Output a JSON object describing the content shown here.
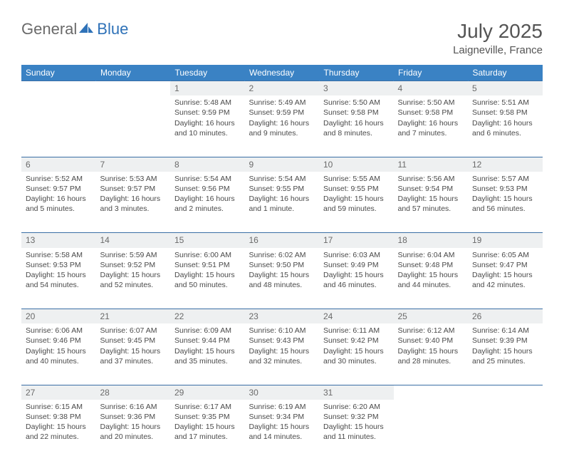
{
  "brand": {
    "part1": "General",
    "part2": "Blue"
  },
  "title": "July 2025",
  "location": "Laigneville, France",
  "colors": {
    "header_bg": "#3a82c4",
    "header_text": "#ffffff",
    "daynum_bg": "#eef0f1",
    "row_border": "#3a6ea5",
    "text": "#4a4a4a",
    "title_text": "#545454",
    "logo_gray": "#6a6a6a",
    "logo_blue": "#2f72b8",
    "page_bg": "#ffffff"
  },
  "dayHeaders": [
    "Sunday",
    "Monday",
    "Tuesday",
    "Wednesday",
    "Thursday",
    "Friday",
    "Saturday"
  ],
  "weeks": [
    [
      null,
      null,
      {
        "n": "1",
        "sr": "Sunrise: 5:48 AM",
        "ss": "Sunset: 9:59 PM",
        "dl": "Daylight: 16 hours and 10 minutes."
      },
      {
        "n": "2",
        "sr": "Sunrise: 5:49 AM",
        "ss": "Sunset: 9:59 PM",
        "dl": "Daylight: 16 hours and 9 minutes."
      },
      {
        "n": "3",
        "sr": "Sunrise: 5:50 AM",
        "ss": "Sunset: 9:58 PM",
        "dl": "Daylight: 16 hours and 8 minutes."
      },
      {
        "n": "4",
        "sr": "Sunrise: 5:50 AM",
        "ss": "Sunset: 9:58 PM",
        "dl": "Daylight: 16 hours and 7 minutes."
      },
      {
        "n": "5",
        "sr": "Sunrise: 5:51 AM",
        "ss": "Sunset: 9:58 PM",
        "dl": "Daylight: 16 hours and 6 minutes."
      }
    ],
    [
      {
        "n": "6",
        "sr": "Sunrise: 5:52 AM",
        "ss": "Sunset: 9:57 PM",
        "dl": "Daylight: 16 hours and 5 minutes."
      },
      {
        "n": "7",
        "sr": "Sunrise: 5:53 AM",
        "ss": "Sunset: 9:57 PM",
        "dl": "Daylight: 16 hours and 3 minutes."
      },
      {
        "n": "8",
        "sr": "Sunrise: 5:54 AM",
        "ss": "Sunset: 9:56 PM",
        "dl": "Daylight: 16 hours and 2 minutes."
      },
      {
        "n": "9",
        "sr": "Sunrise: 5:54 AM",
        "ss": "Sunset: 9:55 PM",
        "dl": "Daylight: 16 hours and 1 minute."
      },
      {
        "n": "10",
        "sr": "Sunrise: 5:55 AM",
        "ss": "Sunset: 9:55 PM",
        "dl": "Daylight: 15 hours and 59 minutes."
      },
      {
        "n": "11",
        "sr": "Sunrise: 5:56 AM",
        "ss": "Sunset: 9:54 PM",
        "dl": "Daylight: 15 hours and 57 minutes."
      },
      {
        "n": "12",
        "sr": "Sunrise: 5:57 AM",
        "ss": "Sunset: 9:53 PM",
        "dl": "Daylight: 15 hours and 56 minutes."
      }
    ],
    [
      {
        "n": "13",
        "sr": "Sunrise: 5:58 AM",
        "ss": "Sunset: 9:53 PM",
        "dl": "Daylight: 15 hours and 54 minutes."
      },
      {
        "n": "14",
        "sr": "Sunrise: 5:59 AM",
        "ss": "Sunset: 9:52 PM",
        "dl": "Daylight: 15 hours and 52 minutes."
      },
      {
        "n": "15",
        "sr": "Sunrise: 6:00 AM",
        "ss": "Sunset: 9:51 PM",
        "dl": "Daylight: 15 hours and 50 minutes."
      },
      {
        "n": "16",
        "sr": "Sunrise: 6:02 AM",
        "ss": "Sunset: 9:50 PM",
        "dl": "Daylight: 15 hours and 48 minutes."
      },
      {
        "n": "17",
        "sr": "Sunrise: 6:03 AM",
        "ss": "Sunset: 9:49 PM",
        "dl": "Daylight: 15 hours and 46 minutes."
      },
      {
        "n": "18",
        "sr": "Sunrise: 6:04 AM",
        "ss": "Sunset: 9:48 PM",
        "dl": "Daylight: 15 hours and 44 minutes."
      },
      {
        "n": "19",
        "sr": "Sunrise: 6:05 AM",
        "ss": "Sunset: 9:47 PM",
        "dl": "Daylight: 15 hours and 42 minutes."
      }
    ],
    [
      {
        "n": "20",
        "sr": "Sunrise: 6:06 AM",
        "ss": "Sunset: 9:46 PM",
        "dl": "Daylight: 15 hours and 40 minutes."
      },
      {
        "n": "21",
        "sr": "Sunrise: 6:07 AM",
        "ss": "Sunset: 9:45 PM",
        "dl": "Daylight: 15 hours and 37 minutes."
      },
      {
        "n": "22",
        "sr": "Sunrise: 6:09 AM",
        "ss": "Sunset: 9:44 PM",
        "dl": "Daylight: 15 hours and 35 minutes."
      },
      {
        "n": "23",
        "sr": "Sunrise: 6:10 AM",
        "ss": "Sunset: 9:43 PM",
        "dl": "Daylight: 15 hours and 32 minutes."
      },
      {
        "n": "24",
        "sr": "Sunrise: 6:11 AM",
        "ss": "Sunset: 9:42 PM",
        "dl": "Daylight: 15 hours and 30 minutes."
      },
      {
        "n": "25",
        "sr": "Sunrise: 6:12 AM",
        "ss": "Sunset: 9:40 PM",
        "dl": "Daylight: 15 hours and 28 minutes."
      },
      {
        "n": "26",
        "sr": "Sunrise: 6:14 AM",
        "ss": "Sunset: 9:39 PM",
        "dl": "Daylight: 15 hours and 25 minutes."
      }
    ],
    [
      {
        "n": "27",
        "sr": "Sunrise: 6:15 AM",
        "ss": "Sunset: 9:38 PM",
        "dl": "Daylight: 15 hours and 22 minutes."
      },
      {
        "n": "28",
        "sr": "Sunrise: 6:16 AM",
        "ss": "Sunset: 9:36 PM",
        "dl": "Daylight: 15 hours and 20 minutes."
      },
      {
        "n": "29",
        "sr": "Sunrise: 6:17 AM",
        "ss": "Sunset: 9:35 PM",
        "dl": "Daylight: 15 hours and 17 minutes."
      },
      {
        "n": "30",
        "sr": "Sunrise: 6:19 AM",
        "ss": "Sunset: 9:34 PM",
        "dl": "Daylight: 15 hours and 14 minutes."
      },
      {
        "n": "31",
        "sr": "Sunrise: 6:20 AM",
        "ss": "Sunset: 9:32 PM",
        "dl": "Daylight: 15 hours and 11 minutes."
      },
      null,
      null
    ]
  ]
}
